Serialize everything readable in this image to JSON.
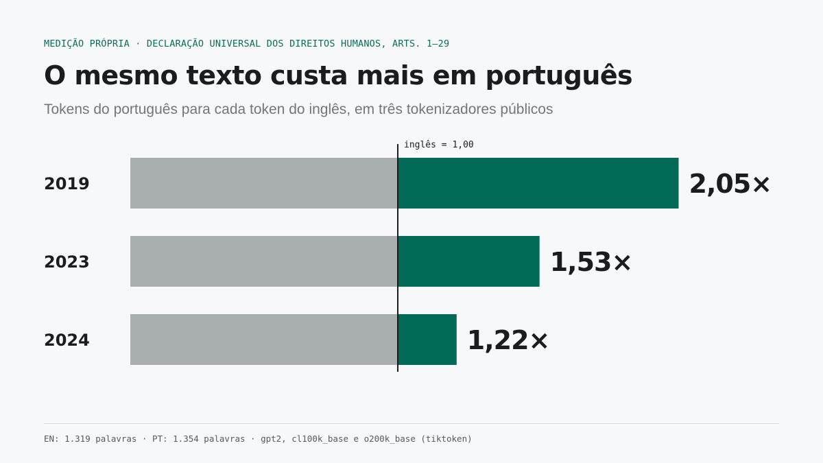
{
  "kicker": "MEDIÇÃO PRÓPRIA · DECLARAÇÃO UNIVERSAL DOS DIREITOS HUMANOS, ARTS. 1–29",
  "title": "O mesmo texto custa mais em português",
  "subtitle": "Tokens do português para cada token do inglês, em três tokenizadores públicos",
  "footer": "EN: 1.319 palavras · PT: 1.354 palavras · gpt2, cl100k_base e o200k_base (tiktoken)",
  "colors": {
    "baseline_bar": "#a9aeb0",
    "excess_bar": "#016b58",
    "text": "#1a1c1e"
  },
  "chart_data": {
    "type": "bar",
    "orientation": "horizontal",
    "categories": [
      "2019",
      "2023",
      "2024"
    ],
    "values": [
      2.05,
      1.53,
      1.22
    ],
    "value_labels": [
      "2,05×",
      "1,53×",
      "1,22×"
    ],
    "baseline": 1.0,
    "baseline_label": "inglês = 1,00",
    "xlim": [
      0,
      2.05
    ],
    "grid": false,
    "legend": "none"
  }
}
